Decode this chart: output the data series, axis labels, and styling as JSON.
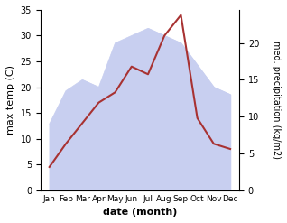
{
  "months": [
    "Jan",
    "Feb",
    "Mar",
    "Apr",
    "May",
    "Jun",
    "Jul",
    "Aug",
    "Sep",
    "Oct",
    "Nov",
    "Dec"
  ],
  "temperature": [
    4.5,
    9.0,
    13.0,
    17.0,
    19.0,
    24.0,
    22.5,
    30.0,
    34.0,
    14.0,
    9.0,
    8.0
  ],
  "precipitation": [
    9.0,
    13.5,
    15.0,
    14.0,
    20.0,
    21.0,
    22.0,
    21.0,
    20.0,
    17.0,
    14.0,
    13.0
  ],
  "temp_color": "#a83232",
  "precip_fill_color": "#c8cff0",
  "temp_ylim": [
    0,
    35
  ],
  "precip_ylim": [
    0,
    24.5
  ],
  "temp_yticks": [
    0,
    5,
    10,
    15,
    20,
    25,
    30,
    35
  ],
  "precip_yticks": [
    0,
    5,
    10,
    15,
    20
  ],
  "xlabel": "date (month)",
  "ylabel_left": "max temp (C)",
  "ylabel_right": "med. precipitation (kg/m2)",
  "bg_color": "#ffffff"
}
